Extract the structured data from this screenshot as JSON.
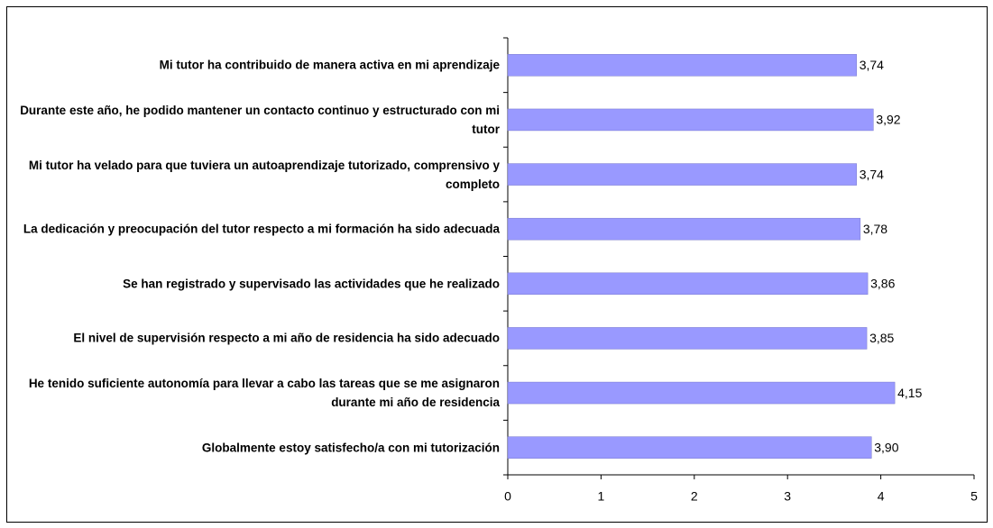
{
  "chart_data": {
    "type": "bar",
    "orientation": "horizontal",
    "categories": [
      "Mi tutor ha contribuido de manera activa en mi aprendizaje",
      "Durante este año, he podido mantener un contacto continuo y estructurado con mi tutor",
      "Mi tutor ha velado para que tuviera un autoaprendizaje tutorizado, comprensivo y completo",
      "La dedicación y preocupación del tutor respecto a mi formación ha sido adecuada",
      "Se han registrado y supervisado las actividades que he realizado",
      "El nivel de supervisión respecto a mi año de residencia ha sido adecuado",
      "He tenido suficiente autonomía para llevar a cabo las tareas que se me asignaron durante mi año de residencia",
      "Globalmente estoy satisfecho/a con mi tutorización"
    ],
    "values": [
      3.74,
      3.92,
      3.74,
      3.78,
      3.86,
      3.85,
      4.15,
      3.9
    ],
    "value_labels": [
      "3,74",
      "3,92",
      "3,74",
      "3,78",
      "3,86",
      "3,85",
      "4,15",
      "3,90"
    ],
    "color": "#9999ff",
    "xlim": [
      0,
      5
    ],
    "xticks": [
      0,
      1,
      2,
      3,
      4,
      5
    ],
    "grid": false
  }
}
